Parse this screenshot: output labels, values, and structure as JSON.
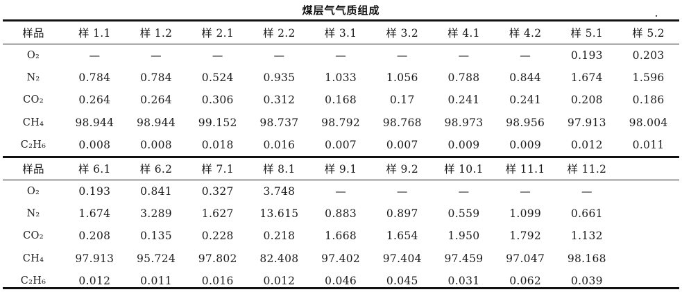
{
  "title": "煤层气气质组成",
  "table1": {
    "header": [
      "样品",
      "样 1.1",
      "样 1.2",
      "样 2.1",
      "样 2.2",
      "样 3.1",
      "样 3.2",
      "样 4.1",
      "样 4.2",
      "样 5.1",
      "样 5.2"
    ],
    "rows": [
      {
        "label": "O₂",
        "values": [
          "—",
          "—",
          "—",
          "—",
          "—",
          "—",
          "—",
          "—",
          "0.193",
          "0.203"
        ]
      },
      {
        "label": "N₂",
        "values": [
          "0.784",
          "0.784",
          "0.524",
          "0.935",
          "1.033",
          "1.056",
          "0.788",
          "0.844",
          "1.674",
          "1.596"
        ]
      },
      {
        "label": "CO₂",
        "values": [
          "0.264",
          "0.264",
          "0.306",
          "0.312",
          "0.168",
          "0.17",
          "0.241",
          "0.241",
          "0.208",
          "0.186"
        ]
      },
      {
        "label": "CH₄",
        "values": [
          "98.944",
          "98.944",
          "99.152",
          "98.737",
          "98.792",
          "98.768",
          "98.973",
          "98.956",
          "97.913",
          "98.004"
        ]
      },
      {
        "label": "C₂H₆",
        "values": [
          "0.008",
          "0.008",
          "0.018",
          "0.016",
          "0.007",
          "0.007",
          "0.009",
          "0.009",
          "0.012",
          "0.011"
        ]
      }
    ]
  },
  "table2": {
    "header": [
      "样品",
      "样 6.1",
      "样 6.2",
      "样 7.1",
      "样 8.1",
      "样 9.1",
      "样 9.2",
      "样 10.1",
      "样 11.1",
      "样 11.2",
      ""
    ],
    "rows": [
      {
        "label": "O₂",
        "values": [
          "0.193",
          "0.841",
          "0.327",
          "3.748",
          "—",
          "—",
          "—",
          "—",
          "—",
          ""
        ]
      },
      {
        "label": "N₂",
        "values": [
          "1.674",
          "3.289",
          "1.627",
          "13.615",
          "0.883",
          "0.897",
          "0.559",
          "1.099",
          "0.661",
          ""
        ]
      },
      {
        "label": "CO₂",
        "values": [
          "0.208",
          "0.135",
          "0.228",
          "0.218",
          "1.668",
          "1.654",
          "1.950",
          "1.792",
          "1.132",
          ""
        ]
      },
      {
        "label": "CH₄",
        "values": [
          "97.913",
          "95.724",
          "97.802",
          "82.408",
          "97.402",
          "97.404",
          "97.459",
          "97.047",
          "98.168",
          ""
        ]
      },
      {
        "label": "C₂H₆",
        "values": [
          "0.012",
          "0.011",
          "0.016",
          "0.012",
          "0.046",
          "0.045",
          "0.031",
          "0.062",
          "0.039",
          ""
        ]
      }
    ]
  }
}
